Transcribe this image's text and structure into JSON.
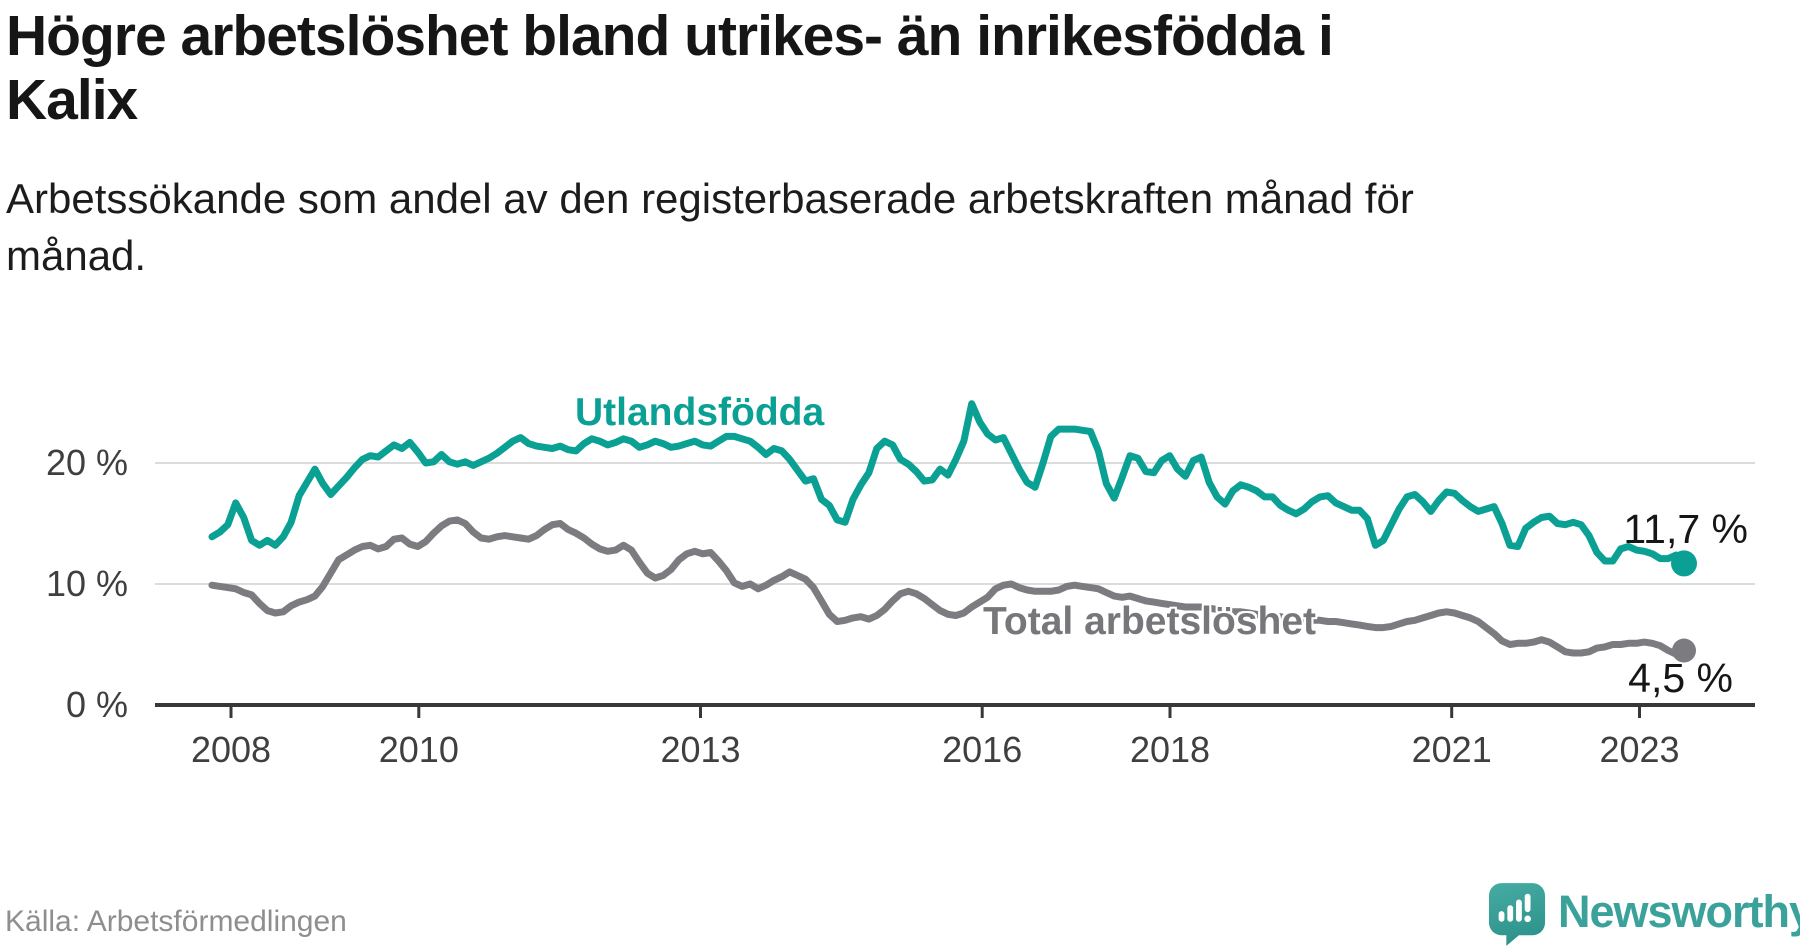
{
  "header": {
    "title_lines": [
      "Högre arbetslöshet bland utrikes- än inrikesfödda i",
      "Kalix"
    ],
    "subtitle_lines": [
      "Arbetssökande som andel av den registerbaserade arbetskraften månad för",
      "månad."
    ]
  },
  "chart_data": {
    "type": "line",
    "title": "Högre arbetslöshet bland utrikes- än inrikesfödda i Kalix",
    "subtitle": "Arbetssökande som andel av den registerbaserade arbetskraften månad för månad.",
    "unit": "%",
    "frequency": "monthly",
    "x_start": "2008-01",
    "x_end": "2023-07",
    "ylim": [
      0,
      26
    ],
    "grid": "horizontal",
    "grid_color": "#dcdcdc",
    "axis_color": "#383838",
    "tick_text_color": "#3f3f3f",
    "legend_position": "inline-labels",
    "y_ticks": [
      {
        "value": 0,
        "label": "0 %"
      },
      {
        "value": 10,
        "label": "10 %"
      },
      {
        "value": 20,
        "label": "20 %"
      }
    ],
    "x_ticks": [
      "2008",
      "2010",
      "2013",
      "2016",
      "2018",
      "2021",
      "2023"
    ],
    "series": [
      {
        "name": "Utlandsfödda",
        "color": "#0ba094",
        "label_color": "#0ba094",
        "end_label": "11,7 %",
        "values": [
          13.9,
          14.3,
          14.9,
          16.7,
          15.5,
          13.6,
          13.2,
          13.6,
          13.2,
          13.9,
          15.1,
          17.3,
          18.4,
          19.5,
          18.3,
          17.4,
          18.1,
          18.8,
          19.6,
          20.3,
          20.6,
          20.5,
          21.0,
          21.5,
          21.2,
          21.7,
          20.9,
          20.0,
          20.1,
          20.7,
          20.1,
          19.9,
          20.1,
          19.8,
          20.1,
          20.4,
          20.8,
          21.3,
          21.8,
          22.1,
          21.6,
          21.4,
          21.3,
          21.2,
          21.4,
          21.1,
          21.0,
          21.6,
          22.0,
          21.8,
          21.5,
          21.7,
          22.0,
          21.8,
          21.3,
          21.5,
          21.8,
          21.6,
          21.3,
          21.4,
          21.6,
          21.8,
          21.5,
          21.4,
          21.8,
          22.2,
          22.2,
          22.0,
          21.8,
          21.3,
          20.7,
          21.2,
          21.0,
          20.3,
          19.4,
          18.5,
          18.7,
          17.0,
          16.5,
          15.3,
          15.1,
          17.0,
          18.2,
          19.2,
          21.2,
          21.8,
          21.5,
          20.3,
          19.9,
          19.3,
          18.5,
          18.6,
          19.5,
          19.0,
          20.3,
          21.8,
          24.9,
          23.4,
          22.4,
          21.9,
          22.1,
          20.8,
          19.5,
          18.4,
          18.0,
          20.0,
          22.2,
          22.8,
          22.8,
          22.8,
          22.7,
          22.6,
          21.0,
          18.3,
          17.1,
          18.8,
          20.6,
          20.4,
          19.3,
          19.2,
          20.2,
          20.6,
          19.5,
          18.9,
          20.2,
          20.5,
          18.4,
          17.2,
          16.6,
          17.7,
          18.2,
          18.0,
          17.7,
          17.2,
          17.2,
          16.5,
          16.1,
          15.8,
          16.2,
          16.8,
          17.2,
          17.3,
          16.7,
          16.4,
          16.1,
          16.1,
          15.4,
          13.2,
          13.6,
          14.9,
          16.2,
          17.2,
          17.4,
          16.8,
          16.0,
          16.9,
          17.6,
          17.5,
          16.9,
          16.4,
          16.0,
          16.2,
          16.4,
          15.0,
          13.2,
          13.1,
          14.6,
          15.1,
          15.5,
          15.6,
          15.0,
          14.9,
          15.1,
          14.9,
          14.0,
          12.6,
          11.9,
          11.9,
          12.9,
          13.1,
          12.8,
          12.7,
          12.5,
          12.1,
          12.1,
          12.4,
          11.7
        ]
      },
      {
        "name": "Total arbetslöshet",
        "color": "#7c7c80",
        "label_color": "#77777b",
        "end_label": "4,5 %",
        "values": [
          9.9,
          9.8,
          9.7,
          9.6,
          9.3,
          9.1,
          8.4,
          7.8,
          7.6,
          7.7,
          8.2,
          8.5,
          8.7,
          9.0,
          9.8,
          10.9,
          12.0,
          12.4,
          12.8,
          13.1,
          13.2,
          12.9,
          13.1,
          13.7,
          13.8,
          13.3,
          13.1,
          13.5,
          14.2,
          14.8,
          15.2,
          15.3,
          15.0,
          14.3,
          13.8,
          13.7,
          13.9,
          14.0,
          13.9,
          13.8,
          13.7,
          14.0,
          14.5,
          14.9,
          15.0,
          14.5,
          14.2,
          13.8,
          13.3,
          12.9,
          12.7,
          12.8,
          13.2,
          12.8,
          11.8,
          10.9,
          10.5,
          10.7,
          11.2,
          12.0,
          12.5,
          12.7,
          12.5,
          12.6,
          11.9,
          11.1,
          10.1,
          9.8,
          10.0,
          9.6,
          9.9,
          10.3,
          10.6,
          11.0,
          10.7,
          10.4,
          9.7,
          8.6,
          7.5,
          6.9,
          7.0,
          7.2,
          7.3,
          7.1,
          7.4,
          7.9,
          8.6,
          9.2,
          9.4,
          9.2,
          8.8,
          8.3,
          7.8,
          7.5,
          7.4,
          7.6,
          8.1,
          8.5,
          8.9,
          9.6,
          9.9,
          10.0,
          9.7,
          9.5,
          9.4,
          9.4,
          9.4,
          9.5,
          9.8,
          9.9,
          9.8,
          9.7,
          9.6,
          9.3,
          9.0,
          8.9,
          9.0,
          8.8,
          8.6,
          8.5,
          8.4,
          8.3,
          8.2,
          8.1,
          8.1,
          8.1,
          8.0,
          7.9,
          7.8,
          7.7,
          7.7,
          7.6,
          7.5,
          7.4,
          7.4,
          7.3,
          7.2,
          7.2,
          7.1,
          7.0,
          7.0,
          6.9,
          6.9,
          6.8,
          6.7,
          6.6,
          6.5,
          6.4,
          6.4,
          6.5,
          6.7,
          6.9,
          7.0,
          7.2,
          7.4,
          7.6,
          7.7,
          7.6,
          7.4,
          7.2,
          6.9,
          6.4,
          5.9,
          5.3,
          5.0,
          5.1,
          5.1,
          5.2,
          5.4,
          5.2,
          4.8,
          4.4,
          4.3,
          4.3,
          4.4,
          4.7,
          4.8,
          5.0,
          5.0,
          5.1,
          5.1,
          5.2,
          5.1,
          4.9,
          4.5,
          4.2,
          4.5
        ]
      }
    ]
  },
  "footer": {
    "source": "Källa: Arbetsförmedlingen",
    "brand": "Newsworthy",
    "brand_color": "#3aa29b",
    "brand_icon": "speech-bubble-bar-chart-exclamation"
  }
}
